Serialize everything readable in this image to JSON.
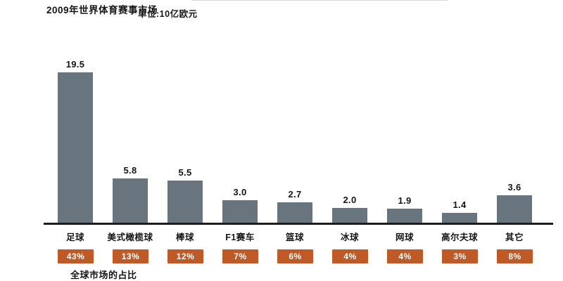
{
  "header": {
    "title": "2009年世界体育赛事市场",
    "unit_label": "单位:10亿欧元"
  },
  "footer": {
    "share_caption": "全球市场的占比"
  },
  "colors": {
    "bar": "#68757f",
    "badge": "#bf5a26",
    "axis": "#1d1d1d",
    "text": "#151515",
    "badge_text": "#ffffff"
  },
  "chart_data": {
    "type": "bar",
    "title": "2009年世界体育赛事市场",
    "unit": "10亿欧元",
    "categories": [
      "足球",
      "美式橄榄球",
      "棒球",
      "F1赛车",
      "篮球",
      "冰球",
      "网球",
      "高尔夫球",
      "其它"
    ],
    "values": [
      19.5,
      5.8,
      5.5,
      3.0,
      2.7,
      2.0,
      1.9,
      1.4,
      3.6
    ],
    "value_labels": [
      "19.5",
      "5.8",
      "5.5",
      "3.0",
      "2.7",
      "2.0",
      "1.9",
      "1.4",
      "3.6"
    ],
    "share_percent": [
      "43%",
      "13%",
      "12%",
      "7%",
      "6%",
      "4%",
      "4%",
      "3%",
      "8%"
    ],
    "xlabel": "",
    "ylabel": "",
    "ylim": [
      0,
      20
    ],
    "grid": false,
    "legend": "none",
    "value_labels_shown": true
  }
}
